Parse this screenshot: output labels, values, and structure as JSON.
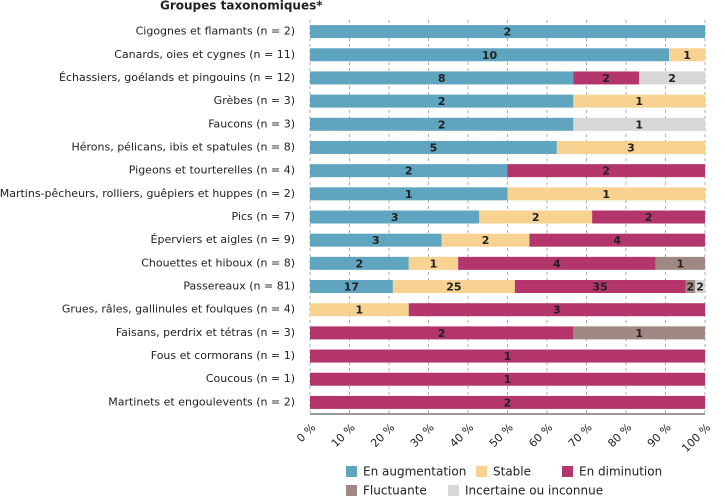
{
  "chart_data": {
    "type": "bar",
    "orientation": "horizontal",
    "stacking": "percent",
    "title": "Groupes taxonomiques*",
    "categories": [
      "Cigognes et flamants (n = 2)",
      "Canards, oies et cygnes (n = 11)",
      "Échassiers, goélands et pingouins (n = 12)",
      "Grèbes (n = 3)",
      "Faucons (n = 3)",
      "Hérons, pélicans, ibis et spatules (n = 8)",
      "Pigeons et tourterelles (n = 4)",
      "Martins-pêcheurs, rolliers, guêpiers et huppes (n = 2)",
      "Pics (n = 7)",
      "Éperviers et aigles (n = 9)",
      "Chouettes et hiboux (n = 8)",
      "Passereaux (n = 81)",
      "Grues, râles, gallinules et foulques (n = 4)",
      "Faisans, perdrix et tétras (n = 3)",
      "Fous et cormorans (n = 1)",
      "Coucous (n = 1)",
      "Martinets et engoulevents (n = 2)"
    ],
    "series": [
      {
        "name": "En augmentation",
        "color": "#5fa5c0",
        "values": [
          2,
          10,
          8,
          2,
          2,
          5,
          2,
          1,
          3,
          3,
          2,
          17,
          null,
          null,
          null,
          null,
          null
        ]
      },
      {
        "name": "Stable",
        "color": "#f8d290",
        "values": [
          null,
          1,
          null,
          1,
          null,
          3,
          null,
          1,
          2,
          2,
          1,
          25,
          1,
          null,
          null,
          null,
          null
        ]
      },
      {
        "name": "En diminution",
        "color": "#b4356b",
        "values": [
          null,
          null,
          2,
          null,
          null,
          null,
          2,
          null,
          2,
          4,
          4,
          35,
          3,
          2,
          1,
          1,
          2
        ]
      },
      {
        "name": "Fluctuante",
        "color": "#a08983",
        "values": [
          null,
          null,
          null,
          null,
          null,
          null,
          null,
          null,
          null,
          null,
          1,
          2,
          null,
          1,
          null,
          null,
          null
        ]
      },
      {
        "name": "Incertaine ou inconnue",
        "color": "#d7d7d7",
        "values": [
          null,
          null,
          2,
          null,
          1,
          null,
          null,
          null,
          null,
          null,
          null,
          2,
          null,
          null,
          null,
          null,
          null
        ]
      }
    ],
    "xlim": [
      0,
      100
    ],
    "xticks": [
      {
        "value": 0,
        "label": "0 %"
      },
      {
        "value": 10,
        "label": "10 %"
      },
      {
        "value": 20,
        "label": "20 %"
      },
      {
        "value": 30,
        "label": "30 %"
      },
      {
        "value": 40,
        "label": "40 %"
      },
      {
        "value": 50,
        "label": "50 %"
      },
      {
        "value": 60,
        "label": "60 %"
      },
      {
        "value": 70,
        "label": "70 %"
      },
      {
        "value": 80,
        "label": "80 %"
      },
      {
        "value": 90,
        "label": "90 %"
      },
      {
        "value": 100,
        "label": "100 %"
      }
    ],
    "grid": true,
    "legend": "bottom"
  }
}
